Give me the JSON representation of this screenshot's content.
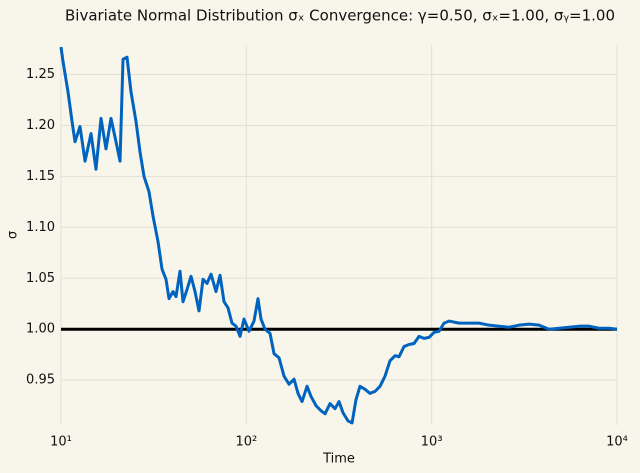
{
  "chart_data": {
    "type": "line",
    "title": "Bivariate Normal Distribution σₓ Convergence: γ=0.50, σₓ=1.00, σᵧ=1.00",
    "xlabel": "Time",
    "ylabel": "σ",
    "xscale": "log",
    "x": [
      10.0,
      10.25,
      10.91,
      11.47,
      11.9,
      12.66,
      13.48,
      14.52,
      15.45,
      16.44,
      17.49,
      18.61,
      19.81,
      20.82,
      21.61,
      22.71,
      23.86,
      25.39,
      26.69,
      28.05,
      29.84,
      31.37,
      33.38,
      35.08,
      36.87,
      38.27,
      40.22,
      41.74,
      43.86,
      45.53,
      47.86,
      50.29,
      52.86,
      55.55,
      58.39,
      61.37,
      64.49,
      68.62,
      72.11,
      75.79,
      79.64,
      83.7,
      87.97,
      92.46,
      97.16,
      103.4,
      110.0,
      115.6,
      120.0,
      126.1,
      134.2,
      141.1,
      150.1,
      159.7,
      170.0,
      180.9,
      190.1,
      199.8,
      212.6,
      223.4,
      237.7,
      252.9,
      265.8,
      282.8,
      301.0,
      316.3,
      332.4,
      353.8,
      371.8,
      390.7,
      410.6,
      437.0,
      465.0,
      494.9,
      526.4,
      560.2,
      596.0,
      634.4,
      666.7,
      709.3,
      754.8,
      803.2,
      854.7,
      909.5,
      967.6,
      1030,
      1096,
      1166,
      1241,
      1405,
      1591,
      1801,
      2039,
      2309,
      2615,
      2961,
      3353,
      3796,
      4298,
      4868,
      5510,
      6242,
      7068,
      8002,
      9060,
      10000
    ],
    "values": [
      1.277,
      1.263,
      1.233,
      1.204,
      1.184,
      1.199,
      1.165,
      1.192,
      1.157,
      1.207,
      1.177,
      1.207,
      1.184,
      1.165,
      1.265,
      1.267,
      1.233,
      1.204,
      1.174,
      1.15,
      1.135,
      1.111,
      1.086,
      1.059,
      1.049,
      1.03,
      1.037,
      1.032,
      1.057,
      1.027,
      1.039,
      1.052,
      1.037,
      1.018,
      1.049,
      1.045,
      1.054,
      1.037,
      1.053,
      1.027,
      1.021,
      1.006,
      1.003,
      0.993,
      1.01,
      0.998,
      1.008,
      1.03,
      1.01,
      1.0,
      0.996,
      0.976,
      0.972,
      0.954,
      0.946,
      0.951,
      0.937,
      0.929,
      0.944,
      0.934,
      0.925,
      0.92,
      0.917,
      0.927,
      0.922,
      0.929,
      0.918,
      0.91,
      0.908,
      0.931,
      0.944,
      0.941,
      0.937,
      0.939,
      0.944,
      0.954,
      0.969,
      0.974,
      0.973,
      0.983,
      0.985,
      0.986,
      0.993,
      0.991,
      0.992,
      0.997,
      0.998,
      1.006,
      1.008,
      1.006,
      1.006,
      1.006,
      1.004,
      1.003,
      1.002,
      1.004,
      1.005,
      1.004,
      1.0,
      1.001,
      1.002,
      1.003,
      1.003,
      1.001,
      1.001,
      1.0
    ],
    "color": "#0063c0",
    "hline": {
      "value": 1,
      "color": "#000000"
    },
    "xlim": [
      10,
      10000
    ],
    "xticks": [
      {
        "value": 10,
        "label": "10¹"
      },
      {
        "value": 100,
        "label": "10²"
      },
      {
        "value": 1000,
        "label": "10³"
      },
      {
        "value": 10000,
        "label": "10⁴"
      }
    ],
    "ylim": [
      0.906,
      1.279
    ],
    "yticks": [
      0.95,
      {
        "value": 1,
        "label": "1.00"
      },
      1.05,
      {
        "value": 1.1,
        "label": "1.10"
      },
      1.15,
      {
        "value": 1.2,
        "label": "1.20"
      },
      1.25
    ],
    "grid": true
  }
}
